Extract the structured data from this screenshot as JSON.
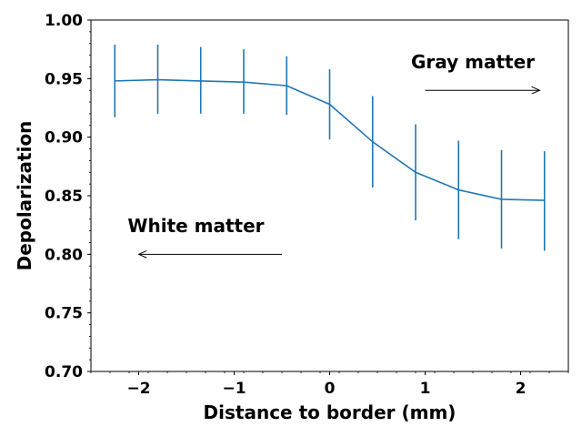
{
  "chart_data": {
    "type": "line",
    "title": "",
    "xlabel": "Distance to border (mm)",
    "ylabel": "Depolarization",
    "xlim": [
      -2.5,
      2.5
    ],
    "ylim": [
      0.7,
      1.0
    ],
    "x_ticks": [
      -2,
      -1,
      0,
      1,
      2
    ],
    "x_tick_labels": [
      "−2",
      "−1",
      "0",
      "1",
      "2"
    ],
    "y_ticks": [
      0.7,
      0.75,
      0.8,
      0.85,
      0.9,
      0.95,
      1.0
    ],
    "y_tick_labels": [
      "0.70",
      "0.75",
      "0.80",
      "0.85",
      "0.90",
      "0.95",
      "1.00"
    ],
    "grid": false,
    "line_color": "#1f77b4",
    "series": [
      {
        "x": [
          -2.25,
          -1.8,
          -1.35,
          -0.9,
          -0.45,
          0.0,
          0.45,
          0.9,
          1.35,
          1.8,
          2.25
        ],
        "y": [
          0.948,
          0.949,
          0.948,
          0.947,
          0.944,
          0.928,
          0.896,
          0.87,
          0.855,
          0.847,
          0.846
        ],
        "err_low": [
          0.917,
          0.92,
          0.92,
          0.92,
          0.919,
          0.898,
          0.857,
          0.829,
          0.813,
          0.805,
          0.803
        ],
        "err_high": [
          0.979,
          0.979,
          0.977,
          0.975,
          0.969,
          0.958,
          0.935,
          0.911,
          0.897,
          0.889,
          0.888
        ]
      }
    ],
    "annotations": [
      {
        "text": "Gray matter",
        "arrow_from_x": 1.0,
        "arrow_to_x": 2.2,
        "arrow_y": 0.94,
        "text_x": 1.5,
        "text_y": 0.959
      },
      {
        "text": "White matter",
        "arrow_from_x": -0.5,
        "arrow_to_x": -2.0,
        "arrow_y": 0.8,
        "text_x": -1.4,
        "text_y": 0.819
      }
    ]
  }
}
